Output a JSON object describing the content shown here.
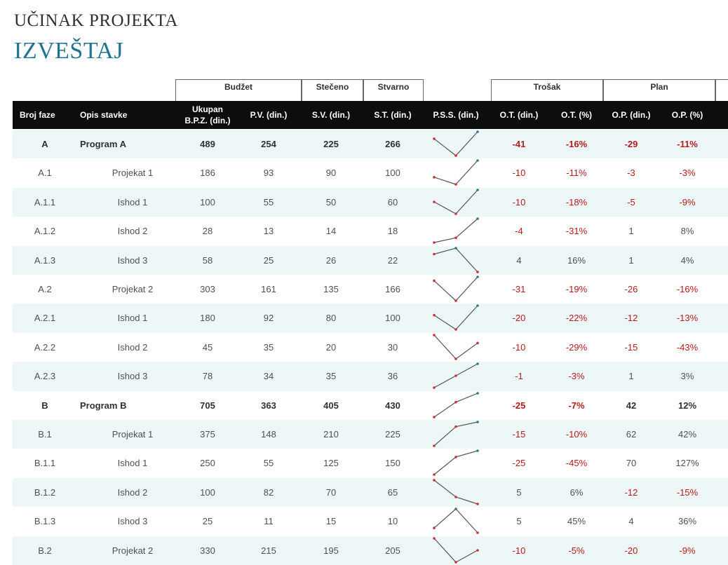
{
  "header": {
    "title": "UČINAK PROJEKTA",
    "subtitle": "IZVEŠTAJ"
  },
  "groups": {
    "budzet": "Budžet",
    "steceno": "Stečeno",
    "stvarno": "Stvarno",
    "trosak": "Trošak",
    "plan": "Plan"
  },
  "columns": {
    "phase": "Broj faze",
    "desc": "Opis stavke",
    "bpz_line1": "Ukupan",
    "bpz_line2": "B.P.Z. (din.)",
    "pv": "P.V. (din.)",
    "sv": "S.V. (din.)",
    "st": "S.T. (din.)",
    "pss": "P.S.S. (din.)",
    "ot": "O.T. (din.)",
    "otp": "O.T. (%)",
    "op": "O.P. (din.)",
    "opp": "O.P. (%)"
  },
  "colors": {
    "accent": "#1f7391",
    "negative": "#b31b1b",
    "band": "#eef7f7",
    "header_bg": "#0d0d0d",
    "spark_line": "#555555",
    "spark_low": "#d03030",
    "spark_high": "#2a7a80"
  },
  "rows": [
    {
      "phase": "A",
      "desc": "Program A",
      "bpz": "489",
      "pv": "254",
      "sv": "225",
      "st": "266",
      "ot": "-41",
      "otp": "-16%",
      "op": "-29",
      "opp": "-11%",
      "bold": true
    },
    {
      "phase": "A.1",
      "desc": "Projekat 1",
      "bpz": "186",
      "pv": "93",
      "sv": "90",
      "st": "100",
      "ot": "-10",
      "otp": "-11%",
      "op": "-3",
      "opp": "-3%",
      "bold": false
    },
    {
      "phase": "A.1.1",
      "desc": "Ishod 1",
      "bpz": "100",
      "pv": "55",
      "sv": "50",
      "st": "60",
      "ot": "-10",
      "otp": "-18%",
      "op": "-5",
      "opp": "-9%",
      "bold": false
    },
    {
      "phase": "A.1.2",
      "desc": "Ishod 2",
      "bpz": "28",
      "pv": "13",
      "sv": "14",
      "st": "18",
      "ot": "-4",
      "otp": "-31%",
      "op": "1",
      "opp": "8%",
      "bold": false
    },
    {
      "phase": "A.1.3",
      "desc": "Ishod 3",
      "bpz": "58",
      "pv": "25",
      "sv": "26",
      "st": "22",
      "ot": "4",
      "otp": "16%",
      "op": "1",
      "opp": "4%",
      "bold": false
    },
    {
      "phase": "A.2",
      "desc": "Projekat 2",
      "bpz": "303",
      "pv": "161",
      "sv": "135",
      "st": "166",
      "ot": "-31",
      "otp": "-19%",
      "op": "-26",
      "opp": "-16%",
      "bold": false
    },
    {
      "phase": "A.2.1",
      "desc": "Ishod 1",
      "bpz": "180",
      "pv": "92",
      "sv": "80",
      "st": "100",
      "ot": "-20",
      "otp": "-22%",
      "op": "-12",
      "opp": "-13%",
      "bold": false
    },
    {
      "phase": "A.2.2",
      "desc": "Ishod 2",
      "bpz": "45",
      "pv": "35",
      "sv": "20",
      "st": "30",
      "ot": "-10",
      "otp": "-29%",
      "op": "-15",
      "opp": "-43%",
      "bold": false
    },
    {
      "phase": "A.2.3",
      "desc": "Ishod 3",
      "bpz": "78",
      "pv": "34",
      "sv": "35",
      "st": "36",
      "ot": "-1",
      "otp": "-3%",
      "op": "1",
      "opp": "3%",
      "bold": false
    },
    {
      "phase": "B",
      "desc": "Program B",
      "bpz": "705",
      "pv": "363",
      "sv": "405",
      "st": "430",
      "ot": "-25",
      "otp": "-7%",
      "op": "42",
      "opp": "12%",
      "bold": true
    },
    {
      "phase": "B.1",
      "desc": "Projekat 1",
      "bpz": "375",
      "pv": "148",
      "sv": "210",
      "st": "225",
      "ot": "-15",
      "otp": "-10%",
      "op": "62",
      "opp": "42%",
      "bold": false
    },
    {
      "phase": "B.1.1",
      "desc": "Ishod 1",
      "bpz": "250",
      "pv": "55",
      "sv": "125",
      "st": "150",
      "ot": "-25",
      "otp": "-45%",
      "op": "70",
      "opp": "127%",
      "bold": false
    },
    {
      "phase": "B.1.2",
      "desc": "Ishod 2",
      "bpz": "100",
      "pv": "82",
      "sv": "70",
      "st": "65",
      "ot": "5",
      "otp": "6%",
      "op": "-12",
      "opp": "-15%",
      "bold": false
    },
    {
      "phase": "B.1.3",
      "desc": "Ishod 3",
      "bpz": "25",
      "pv": "11",
      "sv": "15",
      "st": "10",
      "ot": "5",
      "otp": "45%",
      "op": "4",
      "opp": "36%",
      "bold": false
    },
    {
      "phase": "B.2",
      "desc": "Projekat 2",
      "bpz": "330",
      "pv": "215",
      "sv": "195",
      "st": "205",
      "ot": "-10",
      "otp": "-5%",
      "op": "-20",
      "opp": "-9%",
      "bold": false
    }
  ]
}
